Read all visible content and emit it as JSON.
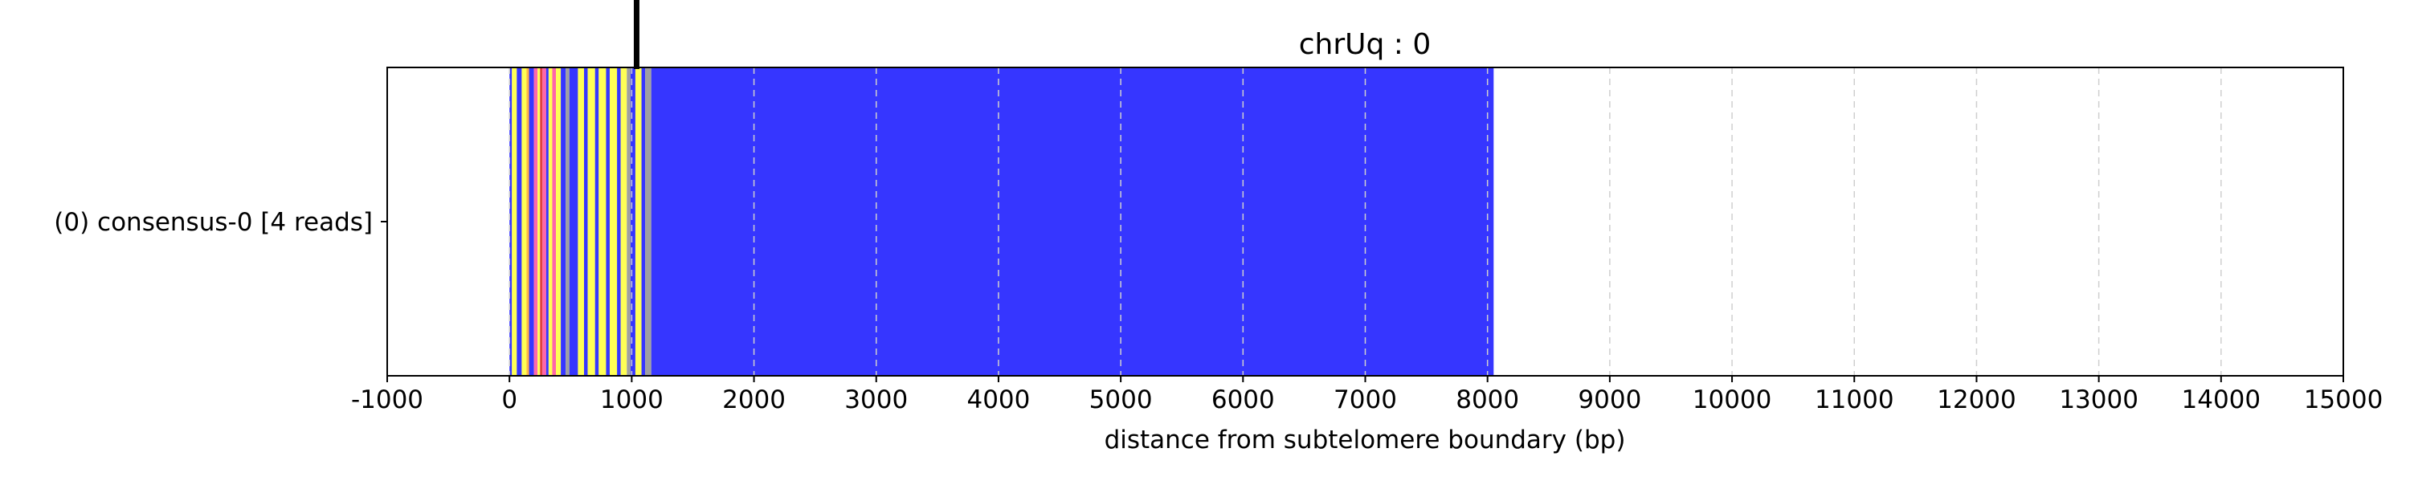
{
  "chart_data": {
    "type": "bar",
    "title": "chrUq : 0",
    "xlabel": "distance from subtelomere boundary (bp)",
    "ylabel": "",
    "xlim": [
      -1000,
      15000
    ],
    "xticks": [
      -1000,
      0,
      1000,
      2000,
      3000,
      4000,
      5000,
      6000,
      7000,
      8000,
      9000,
      10000,
      11000,
      12000,
      13000,
      14000,
      15000
    ],
    "tick_labels": [
      "-1000",
      "0",
      "1000",
      "2000",
      "3000",
      "4000",
      "5000",
      "6000",
      "7000",
      "8000",
      "9000",
      "10000",
      "11000",
      "12000",
      "13000",
      "14000",
      "15000"
    ],
    "grid": "vertical dashed",
    "row_labels": [
      "(0) consensus-0 [4 reads]"
    ],
    "boundary_marker": 1040,
    "colors": {
      "blue": "#3636ff",
      "yellow": "#ffff55",
      "orange": "#ffb347",
      "pink": "#ff66aa",
      "gray": "#a0a0a0",
      "red": "#e04040",
      "grid": "#cfcfcf",
      "marker": "#000000"
    },
    "segments": [
      {
        "start": 0,
        "end": 20,
        "color": "blue"
      },
      {
        "start": 20,
        "end": 60,
        "color": "yellow"
      },
      {
        "start": 60,
        "end": 100,
        "color": "blue"
      },
      {
        "start": 100,
        "end": 140,
        "color": "yellow"
      },
      {
        "start": 140,
        "end": 160,
        "color": "orange"
      },
      {
        "start": 160,
        "end": 200,
        "color": "blue"
      },
      {
        "start": 200,
        "end": 230,
        "color": "pink"
      },
      {
        "start": 230,
        "end": 250,
        "color": "yellow"
      },
      {
        "start": 250,
        "end": 270,
        "color": "red"
      },
      {
        "start": 270,
        "end": 300,
        "color": "pink"
      },
      {
        "start": 300,
        "end": 320,
        "color": "blue"
      },
      {
        "start": 320,
        "end": 350,
        "color": "yellow"
      },
      {
        "start": 350,
        "end": 380,
        "color": "pink"
      },
      {
        "start": 380,
        "end": 420,
        "color": "yellow"
      },
      {
        "start": 420,
        "end": 460,
        "color": "blue"
      },
      {
        "start": 460,
        "end": 490,
        "color": "gray"
      },
      {
        "start": 490,
        "end": 560,
        "color": "blue"
      },
      {
        "start": 560,
        "end": 610,
        "color": "yellow"
      },
      {
        "start": 610,
        "end": 640,
        "color": "blue"
      },
      {
        "start": 640,
        "end": 700,
        "color": "yellow"
      },
      {
        "start": 700,
        "end": 730,
        "color": "blue"
      },
      {
        "start": 730,
        "end": 790,
        "color": "yellow"
      },
      {
        "start": 790,
        "end": 820,
        "color": "blue"
      },
      {
        "start": 820,
        "end": 880,
        "color": "yellow"
      },
      {
        "start": 880,
        "end": 910,
        "color": "blue"
      },
      {
        "start": 910,
        "end": 960,
        "color": "yellow"
      },
      {
        "start": 960,
        "end": 990,
        "color": "gray"
      },
      {
        "start": 990,
        "end": 1030,
        "color": "blue"
      },
      {
        "start": 1030,
        "end": 1080,
        "color": "yellow"
      },
      {
        "start": 1080,
        "end": 1110,
        "color": "blue"
      },
      {
        "start": 1110,
        "end": 1160,
        "color": "gray"
      },
      {
        "start": 1160,
        "end": 8050,
        "color": "blue"
      }
    ]
  }
}
